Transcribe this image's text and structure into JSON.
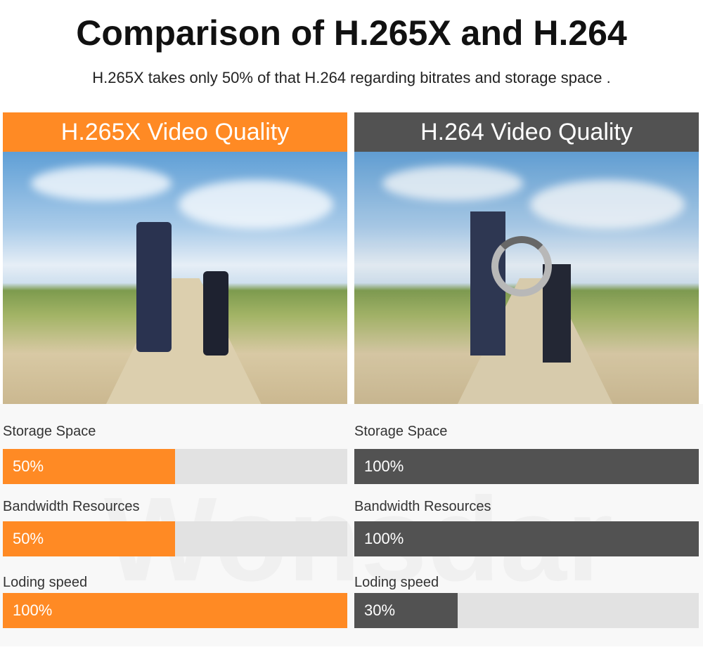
{
  "title": "Comparison of H.265X and H.264",
  "subtitle": "H.265X takes only 50% of that H.264 regarding bitrates and storage space .",
  "watermark": "Wonsdar",
  "colors": {
    "h265": "#ff8a24",
    "h264": "#525252",
    "track": "#e2e2e2"
  },
  "panels": [
    {
      "header": "H.265X Video Quality",
      "color": "#ff8a24",
      "image": "father and son walking on a path, sharp",
      "metrics": [
        {
          "label": "Storage Space",
          "value_label": "50%",
          "value": 50
        },
        {
          "label": "Bandwidth Resources",
          "value_label": "50%",
          "value": 50
        },
        {
          "label": "Loding speed",
          "value_label": "100%",
          "value": 100
        }
      ]
    },
    {
      "header": "H.264 Video Quality",
      "color": "#525252",
      "image": "father and son walking on a path, pixelated with loading spinner",
      "metrics": [
        {
          "label": "Storage Space",
          "value_label": "100%",
          "value": 100
        },
        {
          "label": "Bandwidth Resources",
          "value_label": "100%",
          "value": 100
        },
        {
          "label": "Loding speed",
          "value_label": "30%",
          "value": 30
        }
      ]
    }
  ]
}
